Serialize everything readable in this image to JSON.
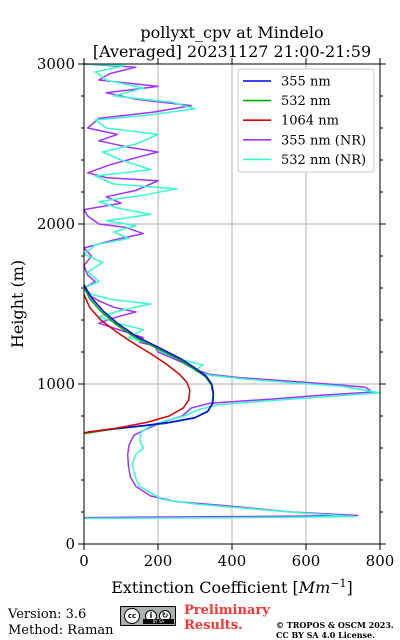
{
  "chart_data": {
    "type": "line",
    "title_line1": "pollyxt_cpv at Mindelo",
    "title_line2": "[Averaged] 20231127 21:00-21:59",
    "xlabel_main": "Extinction Coefficient [",
    "xlabel_unit": "Mm",
    "xlabel_sup": "−1",
    "xlabel_end": "]",
    "ylabel": "Height (m)",
    "xlim": [
      0,
      800
    ],
    "ylim": [
      0,
      3000
    ],
    "xticks": [
      0,
      200,
      400,
      600,
      800
    ],
    "yticks": [
      0,
      1000,
      2000,
      3000
    ],
    "grid": true,
    "legend_position": "top-right",
    "series": [
      {
        "name": "355 nm",
        "color": "#0000ff",
        "points": [
          [
            10,
            700
          ],
          [
            80,
            720
          ],
          [
            160,
            740
          ],
          [
            230,
            760
          ],
          [
            300,
            790
          ],
          [
            335,
            830
          ],
          [
            348,
            880
          ],
          [
            350,
            940
          ],
          [
            345,
            1000
          ],
          [
            330,
            1050
          ],
          [
            300,
            1100
          ],
          [
            260,
            1160
          ],
          [
            200,
            1230
          ],
          [
            140,
            1300
          ],
          [
            90,
            1380
          ],
          [
            50,
            1460
          ],
          [
            20,
            1540
          ],
          [
            0,
            1620
          ]
        ]
      },
      {
        "name": "532 nm",
        "color": "#00aa00",
        "points": [
          [
            0,
            690
          ],
          [
            70,
            715
          ],
          [
            150,
            735
          ],
          [
            225,
            755
          ],
          [
            295,
            785
          ],
          [
            333,
            825
          ],
          [
            346,
            875
          ],
          [
            349,
            935
          ],
          [
            344,
            995
          ],
          [
            328,
            1045
          ],
          [
            297,
            1095
          ],
          [
            255,
            1155
          ],
          [
            195,
            1225
          ],
          [
            135,
            1295
          ],
          [
            85,
            1375
          ],
          [
            45,
            1455
          ],
          [
            15,
            1535
          ],
          [
            0,
            1610
          ]
        ]
      },
      {
        "name": "1064 nm",
        "color": "#dd0000",
        "points": [
          [
            0,
            695
          ],
          [
            90,
            725
          ],
          [
            170,
            760
          ],
          [
            230,
            800
          ],
          [
            268,
            850
          ],
          [
            283,
            900
          ],
          [
            286,
            960
          ],
          [
            278,
            1010
          ],
          [
            258,
            1060
          ],
          [
            225,
            1120
          ],
          [
            180,
            1190
          ],
          [
            130,
            1260
          ],
          [
            85,
            1330
          ],
          [
            45,
            1400
          ],
          [
            15,
            1480
          ],
          [
            0,
            1560
          ]
        ]
      },
      {
        "name": "355 nm (NR)",
        "color": "#a033ff",
        "points": [
          [
            0,
            165
          ],
          [
            150,
            168
          ],
          [
            450,
            172
          ],
          [
            740,
            178
          ],
          [
            560,
            200
          ],
          [
            380,
            240
          ],
          [
            250,
            265
          ],
          [
            180,
            300
          ],
          [
            140,
            360
          ],
          [
            125,
            420
          ],
          [
            120,
            490
          ],
          [
            118,
            560
          ],
          [
            122,
            620
          ],
          [
            135,
            680
          ],
          [
            170,
            720
          ],
          [
            210,
            760
          ],
          [
            265,
            800
          ],
          [
            290,
            850
          ],
          [
            340,
            880
          ],
          [
            500,
            905
          ],
          [
            640,
            930
          ],
          [
            780,
            950
          ],
          [
            760,
            980
          ],
          [
            660,
            1000
          ],
          [
            540,
            1020
          ],
          [
            420,
            1040
          ],
          [
            340,
            1060
          ],
          [
            300,
            1090
          ],
          [
            270,
            1130
          ],
          [
            230,
            1170
          ],
          [
            200,
            1200
          ],
          [
            190,
            1240
          ],
          [
            150,
            1260
          ],
          [
            160,
            1290
          ],
          [
            120,
            1320
          ],
          [
            80,
            1350
          ],
          [
            40,
            1380
          ],
          [
            90,
            1420
          ],
          [
            140,
            1450
          ],
          [
            80,
            1480
          ],
          [
            40,
            1520
          ],
          [
            10,
            1560
          ],
          [
            0,
            1600
          ],
          [
            30,
            1640
          ],
          [
            10,
            1680
          ],
          [
            0,
            1740
          ],
          [
            20,
            1800
          ],
          [
            0,
            1850
          ],
          [
            80,
            1900
          ],
          [
            160,
            1940
          ],
          [
            110,
            1980
          ],
          [
            40,
            2000
          ],
          [
            10,
            2050
          ],
          [
            0,
            2090
          ],
          [
            100,
            2130
          ],
          [
            60,
            2170
          ],
          [
            140,
            2210
          ],
          [
            200,
            2270
          ],
          [
            60,
            2290
          ],
          [
            10,
            2320
          ],
          [
            70,
            2370
          ],
          [
            150,
            2420
          ],
          [
            200,
            2450
          ],
          [
            120,
            2480
          ],
          [
            40,
            2520
          ],
          [
            90,
            2560
          ],
          [
            10,
            2600
          ],
          [
            40,
            2660
          ],
          [
            190,
            2700
          ],
          [
            290,
            2740
          ],
          [
            140,
            2780
          ],
          [
            60,
            2820
          ],
          [
            200,
            2860
          ],
          [
            40,
            2900
          ],
          [
            70,
            2940
          ],
          [
            140,
            2980
          ],
          [
            0,
            3000
          ]
        ]
      },
      {
        "name": "532 nm (NR)",
        "color": "#33ffcc",
        "points": [
          [
            0,
            160
          ],
          [
            300,
            163
          ],
          [
            560,
            167
          ],
          [
            730,
            172
          ],
          [
            580,
            195
          ],
          [
            400,
            230
          ],
          [
            300,
            250
          ],
          [
            210,
            280
          ],
          [
            180,
            320
          ],
          [
            150,
            360
          ],
          [
            140,
            410
          ],
          [
            135,
            450
          ],
          [
            130,
            500
          ],
          [
            140,
            560
          ],
          [
            160,
            600
          ],
          [
            150,
            650
          ],
          [
            155,
            700
          ],
          [
            180,
            740
          ],
          [
            220,
            770
          ],
          [
            270,
            800
          ],
          [
            310,
            840
          ],
          [
            360,
            870
          ],
          [
            500,
            895
          ],
          [
            650,
            920
          ],
          [
            800,
            945
          ],
          [
            700,
            985
          ],
          [
            550,
            1010
          ],
          [
            440,
            1030
          ],
          [
            340,
            1055
          ],
          [
            300,
            1080
          ],
          [
            320,
            1120
          ],
          [
            250,
            1160
          ],
          [
            210,
            1200
          ],
          [
            180,
            1250
          ],
          [
            120,
            1290
          ],
          [
            160,
            1340
          ],
          [
            90,
            1380
          ],
          [
            40,
            1420
          ],
          [
            100,
            1460
          ],
          [
            180,
            1500
          ],
          [
            70,
            1530
          ],
          [
            20,
            1560
          ],
          [
            0,
            1600
          ],
          [
            40,
            1640
          ],
          [
            10,
            1700
          ],
          [
            50,
            1760
          ],
          [
            0,
            1810
          ],
          [
            30,
            1870
          ],
          [
            120,
            1910
          ],
          [
            80,
            1950
          ],
          [
            140,
            1990
          ],
          [
            60,
            2020
          ],
          [
            180,
            2060
          ],
          [
            90,
            2100
          ],
          [
            40,
            2140
          ],
          [
            160,
            2180
          ],
          [
            250,
            2220
          ],
          [
            80,
            2250
          ],
          [
            30,
            2300
          ],
          [
            180,
            2340
          ],
          [
            100,
            2400
          ],
          [
            50,
            2450
          ],
          [
            140,
            2500
          ],
          [
            200,
            2560
          ],
          [
            60,
            2600
          ],
          [
            30,
            2650
          ],
          [
            170,
            2680
          ],
          [
            300,
            2720
          ],
          [
            240,
            2760
          ],
          [
            80,
            2800
          ],
          [
            160,
            2850
          ],
          [
            60,
            2900
          ],
          [
            30,
            2950
          ],
          [
            110,
            2990
          ],
          [
            0,
            3000
          ]
        ]
      }
    ]
  },
  "footer": {
    "version": "Version: 3.6",
    "method": "Method: Raman",
    "prelim_line1": "Preliminary",
    "prelim_line2": "Results.",
    "copyright_line1": "© TROPOS & OSCM 2023.",
    "copyright_line2": "CC BY SA 4.0 License.",
    "cc_label": "cc",
    "by_label": "BY",
    "sa_label": "SA"
  },
  "colors": {
    "prelim": "#ff3333",
    "grid": "#b0b0b0"
  }
}
